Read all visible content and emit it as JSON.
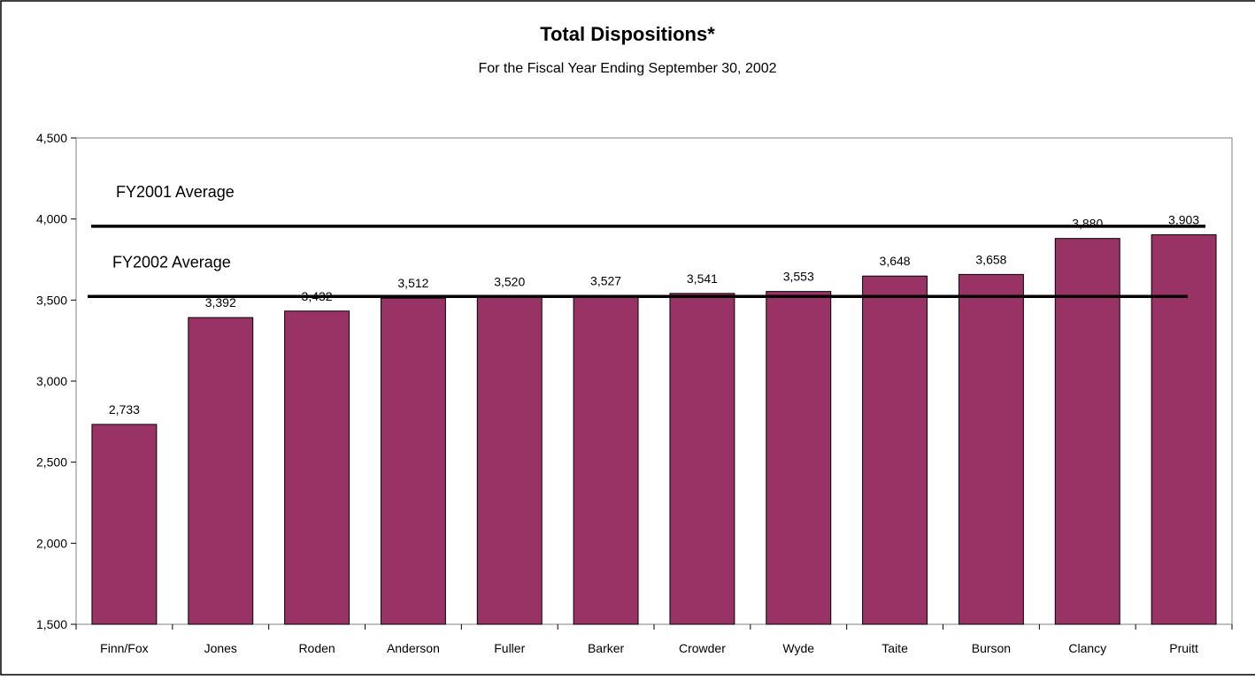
{
  "chart_data": {
    "type": "bar",
    "title": "Total Dispositions*",
    "subtitle": "For the Fiscal Year Ending September 30, 2002",
    "xlabel": "",
    "ylabel": "",
    "categories": [
      "Finn/Fox",
      "Jones",
      "Roden",
      "Anderson",
      "Fuller",
      "Barker",
      "Crowder",
      "Wyde",
      "Taite",
      "Burson",
      "Clancy",
      "Pruitt"
    ],
    "values": [
      2733,
      3392,
      3432,
      3512,
      3520,
      3527,
      3541,
      3553,
      3648,
      3658,
      3880,
      3903
    ],
    "data_labels": [
      "2,733",
      "3,392",
      "3,432",
      "3,512",
      "3,520",
      "3,527",
      "3,541",
      "3,553",
      "3,648",
      "3,658",
      "3,880",
      "3,903"
    ],
    "ylim": [
      1500,
      4500
    ],
    "y_ticks": [
      1500,
      2000,
      2500,
      3000,
      3500,
      4000,
      4500
    ],
    "y_tick_labels": [
      "1,500",
      "2,000",
      "2,500",
      "3,000",
      "3,500",
      "4,000",
      "4,500"
    ],
    "grid": false,
    "bar_color": "#993366",
    "reference_lines": [
      {
        "label": "FY2001 Average",
        "value": 3955
      },
      {
        "label": "FY2002 Average",
        "value": 3522
      }
    ]
  }
}
